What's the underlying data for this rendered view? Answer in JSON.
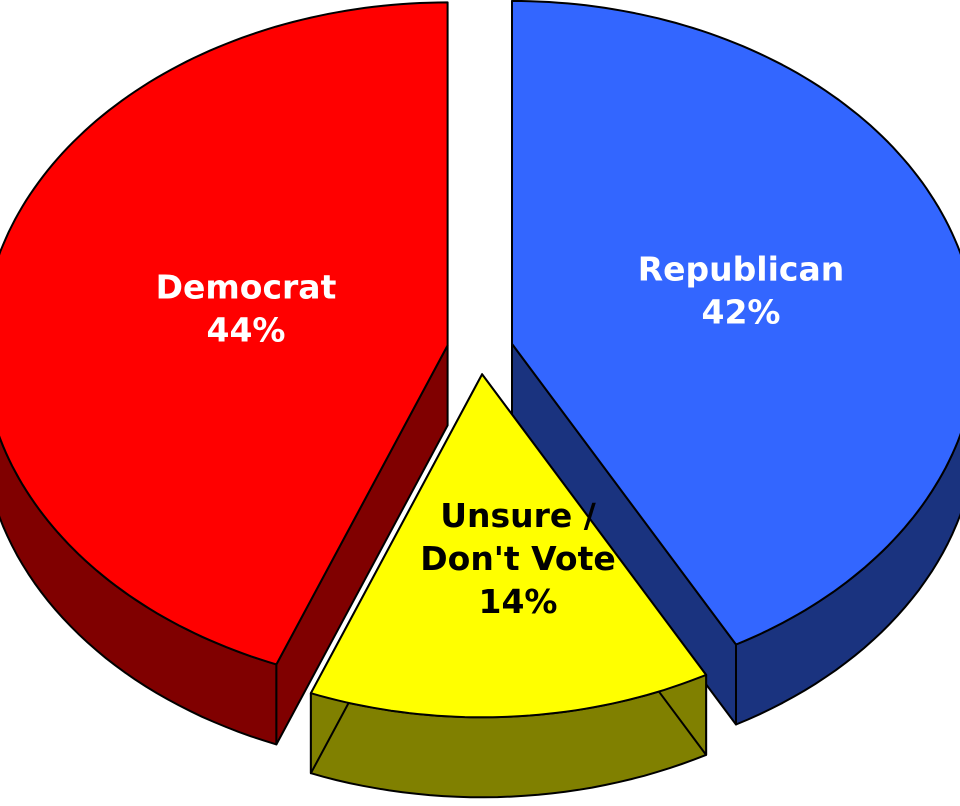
{
  "chart_data": {
    "type": "pie",
    "style": "3d-exploded",
    "title": "",
    "slices": [
      {
        "key": "republican",
        "label_lines": [
          "Republican"
        ],
        "value": 42,
        "value_label": "42%",
        "color": "#3366FF",
        "side_color": "#1A337F",
        "label_color": "#FFFFFF"
      },
      {
        "key": "unsure",
        "label_lines": [
          "Unsure /",
          "Don't Vote"
        ],
        "value": 14,
        "value_label": "14%",
        "color": "#FFFF00",
        "side_color": "#808000",
        "label_color": "#000000"
      },
      {
        "key": "democrat",
        "label_lines": [
          "Democrat"
        ],
        "value": 44,
        "value_label": "44%",
        "color": "#FF0000",
        "side_color": "#800000",
        "label_color": "#FFFFFF"
      }
    ]
  }
}
